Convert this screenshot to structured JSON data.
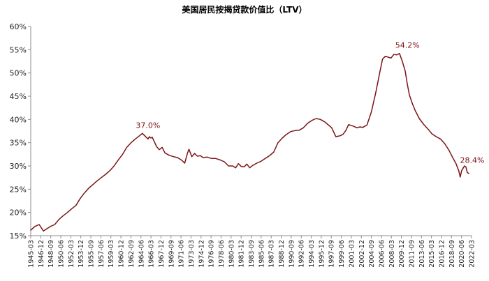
{
  "chart_data": {
    "type": "line",
    "title": "美国居民按揭贷款价值比（LTV）",
    "xlabel": "",
    "ylabel": "",
    "ylim": [
      15,
      60
    ],
    "yticks": [
      15,
      20,
      25,
      30,
      35,
      40,
      45,
      50,
      55,
      60
    ],
    "ytick_labels": [
      "15%",
      "20%",
      "25%",
      "30%",
      "35%",
      "40%",
      "45%",
      "50%",
      "55%",
      "60%"
    ],
    "x_tick_labels": [
      "1945-03",
      "1946-12",
      "1948-09",
      "1950-06",
      "1952-03",
      "1953-12",
      "1955-09",
      "1957-06",
      "1959-03",
      "1960-12",
      "1962-09",
      "1964-06",
      "1966-03",
      "1967-12",
      "1969-09",
      "1971-06",
      "1973-03",
      "1974-12",
      "1976-09",
      "1978-06",
      "1980-03",
      "1981-12",
      "1983-09",
      "1985-06",
      "1987-03",
      "1988-12",
      "1990-09",
      "1992-06",
      "1994-03",
      "1995-12",
      "1997-09",
      "1999-06",
      "2001-03",
      "2002-12",
      "2004-09",
      "2006-06",
      "2008-03",
      "2009-12",
      "2011-09",
      "2013-06",
      "2015-03",
      "2016-12",
      "2018-09",
      "2020-06",
      "2022-03"
    ],
    "grid": false,
    "legend": "none",
    "line_color": "#7b1418",
    "series": [
      {
        "x": [
          1945.25,
          1946.0,
          1946.75,
          1947.5,
          1948.25,
          1948.75,
          1949.5,
          1950.25,
          1951.0,
          1951.75,
          1952.5,
          1953.25,
          1954.0,
          1954.75,
          1955.5,
          1956.25,
          1957.0,
          1957.75,
          1958.5,
          1959.25,
          1960.0,
          1960.75,
          1961.5,
          1962.25,
          1963.0,
          1963.75,
          1964.5,
          1965.0,
          1965.5,
          1966.0,
          1966.25,
          1966.5,
          1966.75,
          1967.0,
          1967.5,
          1968.0,
          1968.5,
          1969.0,
          1969.75,
          1970.5,
          1971.25,
          1972.0,
          1972.5,
          1973.0,
          1973.25,
          1973.75,
          1974.25,
          1974.75,
          1975.25,
          1975.75,
          1976.5,
          1977.25,
          1978.0,
          1978.75,
          1979.5,
          1980.25,
          1981.0,
          1981.5,
          1982.0,
          1982.5,
          1983.0,
          1983.5,
          1984.0,
          1984.5,
          1985.25,
          1986.0,
          1986.75,
          1987.5,
          1988.25,
          1989.0,
          1989.75,
          1990.5,
          1991.25,
          1992.0,
          1992.75,
          1993.5,
          1994.25,
          1995.0,
          1995.75,
          1996.5,
          1997.25,
          1997.75,
          1998.5,
          1999.25,
          2000.0,
          2000.5,
          2001.0,
          2001.5,
          2002.25,
          2003.0,
          2003.5,
          2004.0,
          2004.75,
          2005.5,
          2006.25,
          2007.0,
          2007.5,
          2008.0,
          2008.5,
          2009.0,
          2009.5,
          2010.0,
          2010.5,
          2011.0,
          2011.5,
          2011.9,
          2012.25,
          2012.75,
          2013.25,
          2014.0,
          2014.75,
          2015.5,
          2016.25,
          2017.0,
          2017.75,
          2018.5,
          2019.25,
          2020.0,
          2020.5,
          2021.0,
          2021.25,
          2021.5,
          2021.75,
          2022.0,
          2022.25,
          2022.5,
          2022.75
        ],
        "values": [
          16.2,
          17.0,
          17.4,
          16.0,
          16.6,
          17.0,
          17.4,
          18.5,
          19.3,
          20.0,
          20.8,
          21.5,
          23.0,
          24.2,
          25.2,
          26.0,
          26.8,
          27.5,
          28.2,
          29.0,
          30.0,
          31.3,
          32.5,
          34.0,
          35.0,
          35.8,
          36.5,
          37.0,
          36.4,
          35.8,
          36.3,
          36.0,
          36.2,
          35.5,
          34.2,
          33.5,
          34.0,
          32.8,
          32.3,
          32.0,
          31.8,
          31.2,
          30.6,
          32.8,
          33.6,
          32.0,
          32.7,
          32.1,
          32.2,
          31.8,
          31.9,
          31.6,
          31.6,
          31.3,
          30.9,
          30.0,
          30.0,
          29.6,
          30.5,
          29.9,
          29.8,
          30.4,
          29.6,
          30.1,
          30.6,
          31.0,
          31.6,
          32.2,
          33.0,
          35.0,
          36.0,
          36.8,
          37.4,
          37.6,
          37.7,
          38.2,
          39.2,
          39.8,
          40.2,
          40.0,
          39.5,
          39.0,
          38.2,
          36.3,
          36.5,
          36.8,
          37.6,
          38.9,
          38.6,
          38.2,
          38.4,
          38.3,
          38.8,
          41.5,
          45.5,
          50.0,
          53.0,
          53.6,
          53.4,
          53.2,
          54.0,
          53.9,
          54.2,
          52.5,
          50.5,
          47.5,
          45.3,
          43.5,
          42.0,
          40.2,
          39.0,
          38.0,
          36.9,
          36.3,
          35.8,
          34.8,
          33.4,
          31.6,
          30.5,
          28.9,
          27.6,
          29.0,
          29.5,
          30.0,
          29.8,
          28.6,
          28.4
        ]
      }
    ],
    "annotations": [
      {
        "text": "37.0%",
        "x": 1966.0,
        "y": 37.0
      },
      {
        "text": "54.2%",
        "x": 2011.9,
        "y": 54.2
      },
      {
        "text": "28.4%",
        "x": 2022.75,
        "y": 28.4
      }
    ]
  }
}
